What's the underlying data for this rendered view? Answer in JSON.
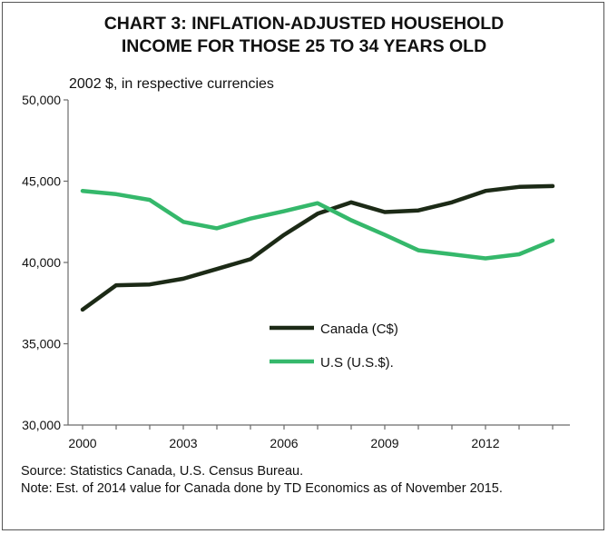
{
  "chart_data": {
    "type": "line",
    "title_lines": [
      "CHART 3: INFLATION-ADJUSTED HOUSEHOLD",
      "INCOME FOR THOSE 25 TO 34 YEARS OLD"
    ],
    "subtitle": "2002 $, in respective currencies",
    "x": [
      2000,
      2001,
      2002,
      2003,
      2004,
      2005,
      2006,
      2007,
      2008,
      2009,
      2010,
      2011,
      2012,
      2013,
      2014
    ],
    "x_ticks": [
      "2000",
      "2003",
      "2006",
      "2009",
      "2012"
    ],
    "y_ticks": [
      "30,000",
      "35,000",
      "40,000",
      "45,000",
      "50,000"
    ],
    "ylim": [
      30000,
      50000
    ],
    "xlim": [
      2000,
      2014
    ],
    "grid": false,
    "legend_position": "center",
    "series": [
      {
        "name": "Canada (C$)",
        "color": "#1c2a16",
        "values": [
          37100,
          38600,
          38650,
          39000,
          39600,
          40200,
          41700,
          43000,
          43700,
          43100,
          43200,
          43700,
          44400,
          44650,
          44700
        ]
      },
      {
        "name": "U.S (U.S.$).",
        "color": "#35b86b",
        "values": [
          44400,
          44200,
          43850,
          42500,
          42100,
          42700,
          43150,
          43650,
          42600,
          41700,
          40750,
          40500,
          40250,
          40500,
          41350
        ]
      }
    ]
  },
  "footer": {
    "source": "Source: Statistics Canada, U.S. Census Bureau.",
    "note": "Note: Est. of 2014 value for Canada done by TD Economics as of November 2015."
  }
}
